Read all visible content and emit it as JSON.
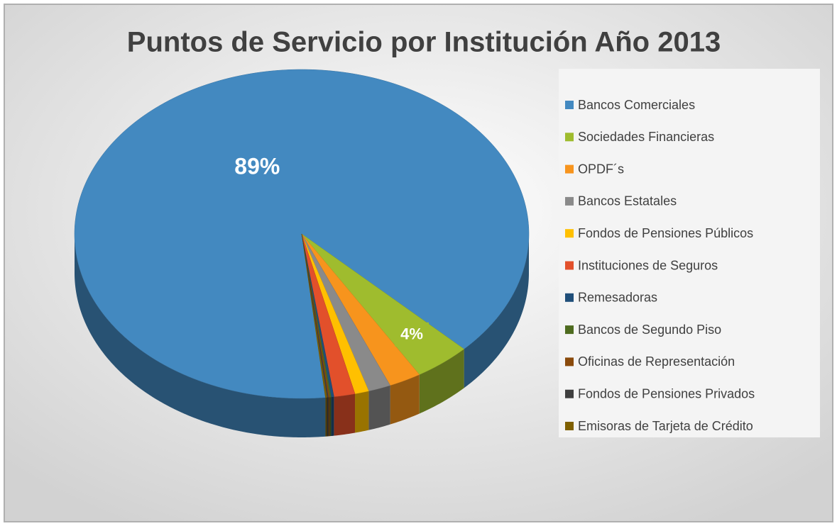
{
  "chart_data": {
    "type": "pie3d",
    "title": "Puntos de Servicio por Institución Año 2013",
    "categories": [
      "Bancos Comerciales",
      "Sociedades Financieras",
      "OPDF´s",
      "Bancos Estatales",
      "Fondos de Pensiones Públicos",
      "Instituciones de Seguros",
      "Remesadoras",
      "Bancos de Segundo Piso",
      "Oficinas de Representación",
      "Fondos de Pensiones Privados",
      "Emisoras de Tarjeta de Crédito"
    ],
    "values": [
      89,
      4,
      2.3,
      1.6,
      1.0,
      1.5,
      0.2,
      0.1,
      0.1,
      0.1,
      0.1
    ],
    "value_labels": [
      "89%",
      "4%",
      null,
      null,
      null,
      null,
      null,
      null,
      null,
      null,
      null
    ],
    "colors": [
      "#4389c0",
      "#9fbc2e",
      "#f7941d",
      "#8a8a8a",
      "#ffc000",
      "#e2502b",
      "#1f4e79",
      "#4e6b1f",
      "#8a4a0c",
      "#3f3f3f",
      "#7f6000"
    ],
    "legend": "right"
  }
}
